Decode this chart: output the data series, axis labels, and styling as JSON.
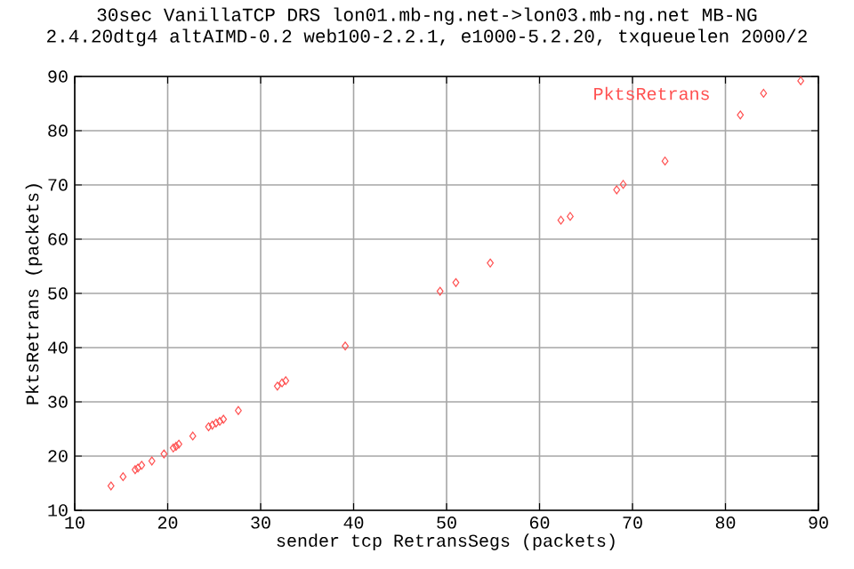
{
  "chart_data": {
    "type": "scatter",
    "title": "30sec VanillaTCP DRS lon01.mb-ng.net->lon03.mb-ng.net MB-NG",
    "subtitle": "2.4.20dtg4 altAIMD-0.2 web100-2.2.1, e1000-5.2.20, txqueuelen 2000/2",
    "xlabel": "sender tcp RetransSegs (packets)",
    "ylabel": "PktsRetrans (packets)",
    "xlim": [
      10,
      90
    ],
    "ylim": [
      10,
      90
    ],
    "xticks": [
      10,
      20,
      30,
      40,
      50,
      60,
      70,
      80,
      90
    ],
    "yticks": [
      10,
      20,
      30,
      40,
      50,
      60,
      70,
      80,
      90
    ],
    "grid": true,
    "legend": "top right",
    "marker": "diamond",
    "series": [
      {
        "name": "PktsRetrans",
        "color": "#ff5050",
        "x": [
          13.9,
          15.2,
          16.5,
          16.8,
          17.2,
          18.3,
          19.6,
          20.6,
          20.9,
          21.2,
          22.7,
          24.4,
          24.8,
          25.2,
          25.6,
          26.0,
          27.6,
          31.8,
          32.3,
          32.7,
          39.1,
          49.3,
          51.0,
          54.7,
          62.3,
          63.3,
          68.3,
          69.0,
          73.5,
          81.6,
          84.1,
          88.1
        ],
        "values": [
          14.5,
          16.2,
          17.5,
          17.8,
          18.3,
          19.1,
          20.4,
          21.5,
          21.8,
          22.2,
          23.7,
          25.4,
          25.7,
          26.1,
          26.4,
          26.8,
          28.4,
          32.9,
          33.5,
          33.9,
          40.3,
          50.4,
          52.0,
          55.6,
          63.5,
          64.2,
          69.1,
          70.1,
          74.4,
          82.9,
          86.9,
          89.2
        ]
      }
    ]
  }
}
